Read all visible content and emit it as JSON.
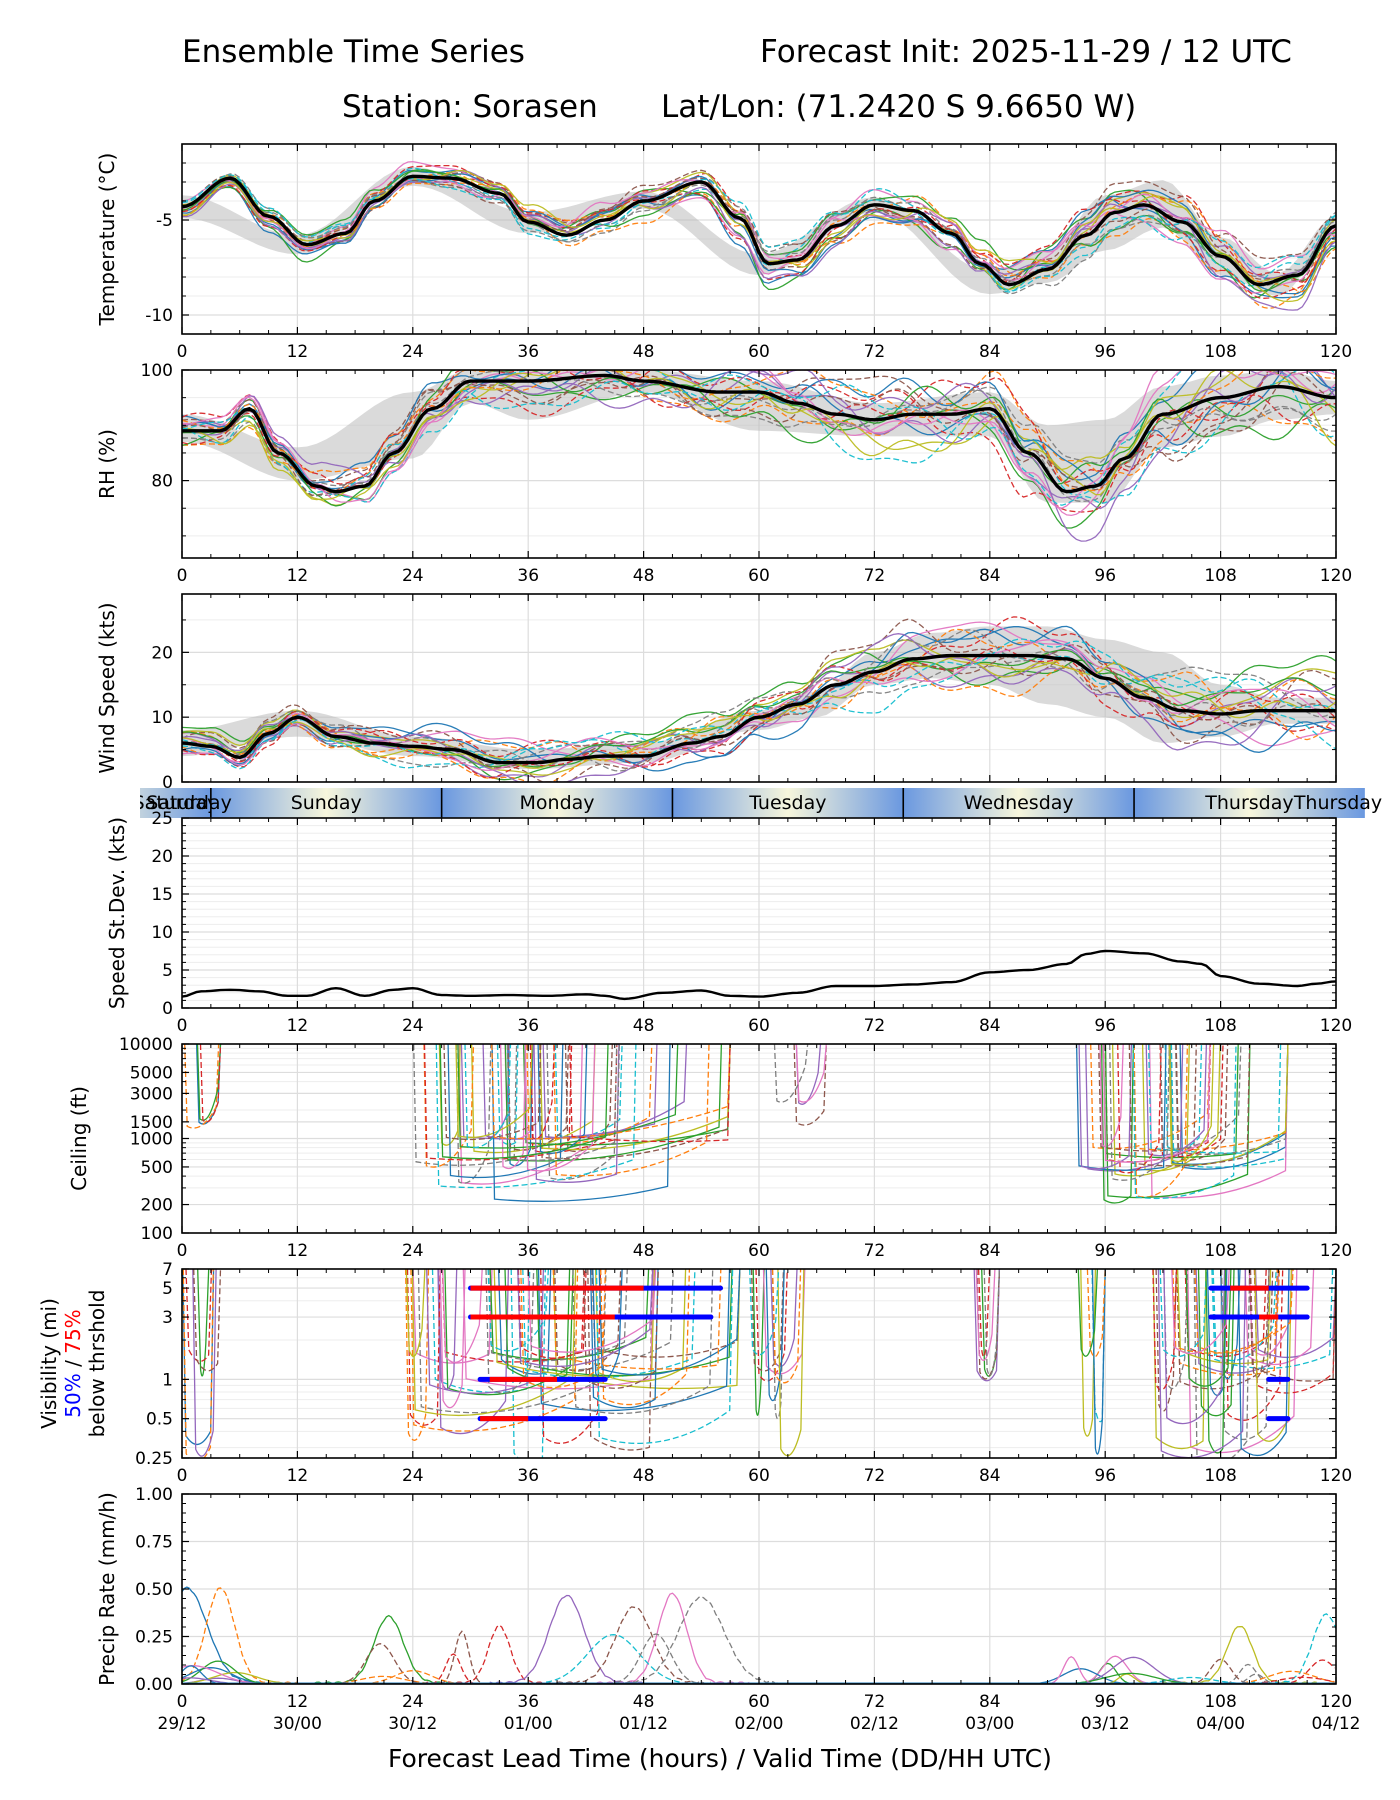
{
  "header": {
    "title_left": "Ensemble Time Series",
    "title_right": "Forecast Init: 2025-11-29 / 12 UTC",
    "station_line": "Station: Sorasen",
    "latlon_line": "Lat/Lon: (71.2420 S 9.6650 W)"
  },
  "xlabel": "Forecast Lead Time (hours) / Valid Time (DD/HH UTC)",
  "colors": {
    "members": [
      "#1f77b4",
      "#ff7f0e",
      "#2ca02c",
      "#d62728",
      "#9467bd",
      "#8c564b",
      "#e377c2",
      "#7f7f7f",
      "#bcbd22",
      "#17becf"
    ],
    "mean": "#000000",
    "spread_band": "#bbbbbb",
    "day_blue": "#6a98e0",
    "day_cream": "#f7f6dc",
    "vis_50": "#0000ff",
    "vis_75": "#ff0000"
  },
  "chart_data": [
    {
      "type": "line",
      "name": "temperature",
      "ylabel": "Temperature (°C)",
      "xlim": [
        0,
        120
      ],
      "ylim": [
        -11,
        -1
      ],
      "yticks": [
        -10,
        -5
      ],
      "xticks": [
        0,
        12,
        24,
        36,
        48,
        60,
        72,
        84,
        96,
        108,
        120
      ],
      "grid": true,
      "members": 20,
      "ensemble_mean": {
        "x": [
          0,
          5,
          9,
          13,
          17,
          20,
          24,
          28,
          33,
          36,
          40,
          44,
          48,
          54,
          58,
          61,
          64,
          68,
          72,
          76,
          80,
          83,
          86,
          90,
          94,
          97,
          100,
          104,
          108,
          112,
          116,
          120
        ],
        "y": [
          -4.3,
          -2.8,
          -4.8,
          -6.3,
          -5.7,
          -4.0,
          -2.7,
          -2.8,
          -3.6,
          -5.1,
          -5.8,
          -5.0,
          -4.0,
          -3.0,
          -4.9,
          -7.3,
          -7.1,
          -5.3,
          -4.2,
          -4.5,
          -5.7,
          -7.3,
          -8.4,
          -7.6,
          -5.8,
          -4.6,
          -4.2,
          -5.1,
          -6.9,
          -8.4,
          -7.9,
          -5.3
        ]
      },
      "spread_band": {
        "x": [
          0,
          12,
          24,
          36,
          48,
          60,
          72,
          84,
          90,
          96,
          102,
          108,
          114,
          120
        ],
        "low": [
          -4.9,
          -6.8,
          -3.2,
          -5.7,
          -4.4,
          -7.9,
          -4.6,
          -8.9,
          -8.3,
          -6.6,
          -5.4,
          -7.9,
          -9.0,
          -5.8
        ],
        "high": [
          -3.7,
          -5.8,
          -2.2,
          -4.6,
          -3.5,
          -6.8,
          -3.8,
          -7.7,
          -6.6,
          -3.7,
          -2.9,
          -5.9,
          -7.8,
          -4.8
        ]
      }
    },
    {
      "type": "line",
      "name": "relative_humidity",
      "ylabel": "RH (%)",
      "xlim": [
        0,
        120
      ],
      "ylim": [
        66,
        100
      ],
      "yticks": [
        80,
        100
      ],
      "xticks": [
        0,
        12,
        24,
        36,
        48,
        60,
        72,
        84,
        96,
        108,
        120
      ],
      "grid": true,
      "members": 20,
      "ensemble_mean": {
        "x": [
          0,
          4,
          7,
          10,
          14,
          16,
          19,
          22,
          26,
          30,
          36,
          44,
          48,
          56,
          60,
          64,
          68,
          72,
          76,
          80,
          84,
          88,
          92,
          95,
          98,
          102,
          108,
          114,
          120
        ],
        "y": [
          89,
          89,
          93,
          85,
          79,
          78,
          79,
          85,
          93,
          98,
          98,
          99,
          98,
          96,
          96,
          94,
          92,
          91,
          92,
          92,
          93,
          85,
          78,
          79,
          84,
          92,
          95,
          97,
          95
        ]
      },
      "spread_band": {
        "x": [
          0,
          12,
          24,
          30,
          36,
          48,
          60,
          72,
          84,
          90,
          96,
          102,
          108,
          114,
          120
        ],
        "low": [
          87,
          80,
          84,
          94,
          91,
          96,
          89,
          88,
          88,
          76,
          76,
          86,
          88,
          91,
          92
        ],
        "high": [
          92,
          86,
          96,
          100,
          100,
          100,
          98,
          94,
          96,
          90,
          91,
          97,
          99,
          100,
          98
        ]
      }
    },
    {
      "type": "line",
      "name": "wind_speed",
      "ylabel": "Wind Speed (kts)",
      "xlim": [
        0,
        120
      ],
      "ylim": [
        0,
        29
      ],
      "yticks": [
        0,
        10,
        20
      ],
      "xticks": [
        0,
        12,
        24,
        36,
        48,
        60,
        72,
        84,
        96,
        108,
        120
      ],
      "grid": true,
      "members": 20,
      "ensemble_mean": {
        "x": [
          0,
          3,
          6,
          9,
          12,
          16,
          20,
          24,
          28,
          33,
          37,
          40,
          44,
          48,
          53,
          56,
          60,
          64,
          68,
          72,
          76,
          80,
          84,
          88,
          92,
          96,
          100,
          104,
          108,
          112,
          116,
          120
        ],
        "y": [
          6,
          5.5,
          3.8,
          7.5,
          10,
          7,
          6,
          5.5,
          5,
          3,
          3,
          3.5,
          4,
          4,
          6,
          7,
          10,
          12,
          15,
          17,
          19,
          19.5,
          19.5,
          19.5,
          19,
          16,
          13,
          11,
          10.5,
          11,
          11,
          11
        ]
      },
      "spread_band": {
        "x": [
          0,
          12,
          24,
          36,
          48,
          60,
          66,
          72,
          78,
          84,
          90,
          96,
          102,
          108,
          114,
          120
        ],
        "low": [
          4,
          7,
          4,
          2,
          3,
          8,
          10,
          15,
          16,
          15,
          12,
          10,
          6,
          7,
          9,
          9
        ],
        "high": [
          8,
          11,
          7,
          5,
          6,
          11,
          14,
          20,
          23,
          24,
          24,
          22,
          20,
          15,
          13,
          13
        ]
      }
    },
    {
      "type": "line",
      "name": "speed_stdev",
      "ylabel": "Speed St.Dev. (kts)",
      "xlim": [
        0,
        120
      ],
      "ylim": [
        0,
        25
      ],
      "yticks": [
        0,
        5,
        10,
        15,
        20,
        25
      ],
      "xticks": [
        0,
        12,
        24,
        36,
        48,
        60,
        72,
        84,
        96,
        108,
        120
      ],
      "grid": true,
      "series": [
        {
          "name": "stdev",
          "x": [
            0,
            2,
            5,
            8,
            11,
            13,
            16,
            19,
            22,
            24,
            27,
            30,
            34,
            38,
            42,
            44,
            46,
            50,
            54,
            57,
            60,
            64,
            68,
            72,
            76,
            80,
            84,
            88,
            92,
            94,
            96,
            100,
            104,
            106,
            108,
            112,
            116,
            118,
            120
          ],
          "y": [
            1.5,
            2.2,
            2.4,
            2.2,
            1.6,
            1.6,
            2.6,
            1.6,
            2.4,
            2.6,
            1.7,
            1.6,
            1.7,
            1.6,
            1.8,
            1.6,
            1.2,
            2.0,
            2.3,
            1.6,
            1.5,
            2.0,
            2.9,
            2.9,
            3.1,
            3.4,
            4.7,
            5.0,
            5.8,
            7.1,
            7.5,
            7.2,
            6.1,
            5.8,
            4.2,
            3.2,
            2.9,
            3.2,
            3.5
          ]
        }
      ]
    },
    {
      "type": "line",
      "name": "ceiling",
      "ylabel": "Ceiling (ft)",
      "scale": "log",
      "xlim": [
        0,
        120
      ],
      "ylim": [
        100,
        10000
      ],
      "yticks": [
        "100",
        "200",
        "500",
        "1000",
        "1500",
        "3000",
        "5000",
        "10000"
      ],
      "xticks": [
        0,
        12,
        24,
        36,
        48,
        60,
        72,
        84,
        96,
        108,
        120
      ],
      "grid": true,
      "active_periods": [
        [
          0,
          4
        ],
        [
          24,
          57
        ],
        [
          61,
          67
        ],
        [
          93,
          115
        ]
      ],
      "minimum_ft": 160
    },
    {
      "type": "line",
      "name": "visibility",
      "ylabel": "Visibility (mi)",
      "ylabel_50": "50%",
      "ylabel_sep": " / ",
      "ylabel_75": "75%",
      "ylabel_below": "below thrshold",
      "scale": "log",
      "xlim": [
        0,
        120
      ],
      "ylim": [
        0.25,
        7
      ],
      "yticks": [
        "0.25",
        "0.5",
        "1",
        "3",
        "5",
        "7"
      ],
      "xticks": [
        0,
        12,
        24,
        36,
        48,
        60,
        72,
        84,
        96,
        108,
        120
      ],
      "grid": true,
      "threshold_bars": [
        {
          "threshold": 5,
          "x50": [
            30,
            56
          ],
          "x75": [
            30,
            48
          ]
        },
        {
          "threshold": 3,
          "x50": [
            30,
            55
          ],
          "x75": [
            30,
            45
          ]
        },
        {
          "threshold": 1,
          "x50": [
            31,
            44
          ],
          "x75": [
            32,
            39
          ]
        },
        {
          "threshold": 0.5,
          "x50": [
            31,
            44
          ],
          "x75": [
            31,
            36
          ]
        },
        {
          "threshold": 5,
          "x50": [
            107,
            117
          ],
          "x75": [
            109,
            113
          ]
        },
        {
          "threshold": 3,
          "x50": [
            107,
            117
          ],
          "x75": [
            112,
            114
          ]
        },
        {
          "threshold": 1,
          "x50": [
            113,
            115
          ],
          "x75": []
        },
        {
          "threshold": 0.5,
          "x50": [
            113,
            115
          ],
          "x75": []
        }
      ]
    },
    {
      "type": "line",
      "name": "precip_rate",
      "ylabel": "Precip Rate (mm/h)",
      "xlim": [
        0,
        120
      ],
      "ylim": [
        0,
        1
      ],
      "yticks": [
        "0.00",
        "0.25",
        "0.50",
        "0.75",
        "1.00"
      ],
      "xticks": [
        0,
        12,
        24,
        36,
        48,
        60,
        72,
        84,
        96,
        108,
        120
      ],
      "xticks_valid": [
        "29/12",
        "30/00",
        "30/12",
        "01/00",
        "01/12",
        "02/00",
        "02/12",
        "03/00",
        "03/12",
        "04/00",
        "04/12"
      ],
      "grid": true,
      "member_peaks": [
        {
          "x": 0.5,
          "y": 0.5
        },
        {
          "x": 4,
          "y": 0.5
        },
        {
          "x": 21.5,
          "y": 0.35
        },
        {
          "x": 33,
          "y": 0.3
        },
        {
          "x": 40,
          "y": 0.46
        },
        {
          "x": 47,
          "y": 0.4
        },
        {
          "x": 51,
          "y": 0.47
        },
        {
          "x": 54,
          "y": 0.45
        },
        {
          "x": 110,
          "y": 0.3
        },
        {
          "x": 119,
          "y": 0.36
        }
      ]
    }
  ],
  "day_strip": {
    "days": [
      "Saturday",
      "Sunday",
      "Monday",
      "Tuesday",
      "Wednesday",
      "Thursday"
    ]
  }
}
